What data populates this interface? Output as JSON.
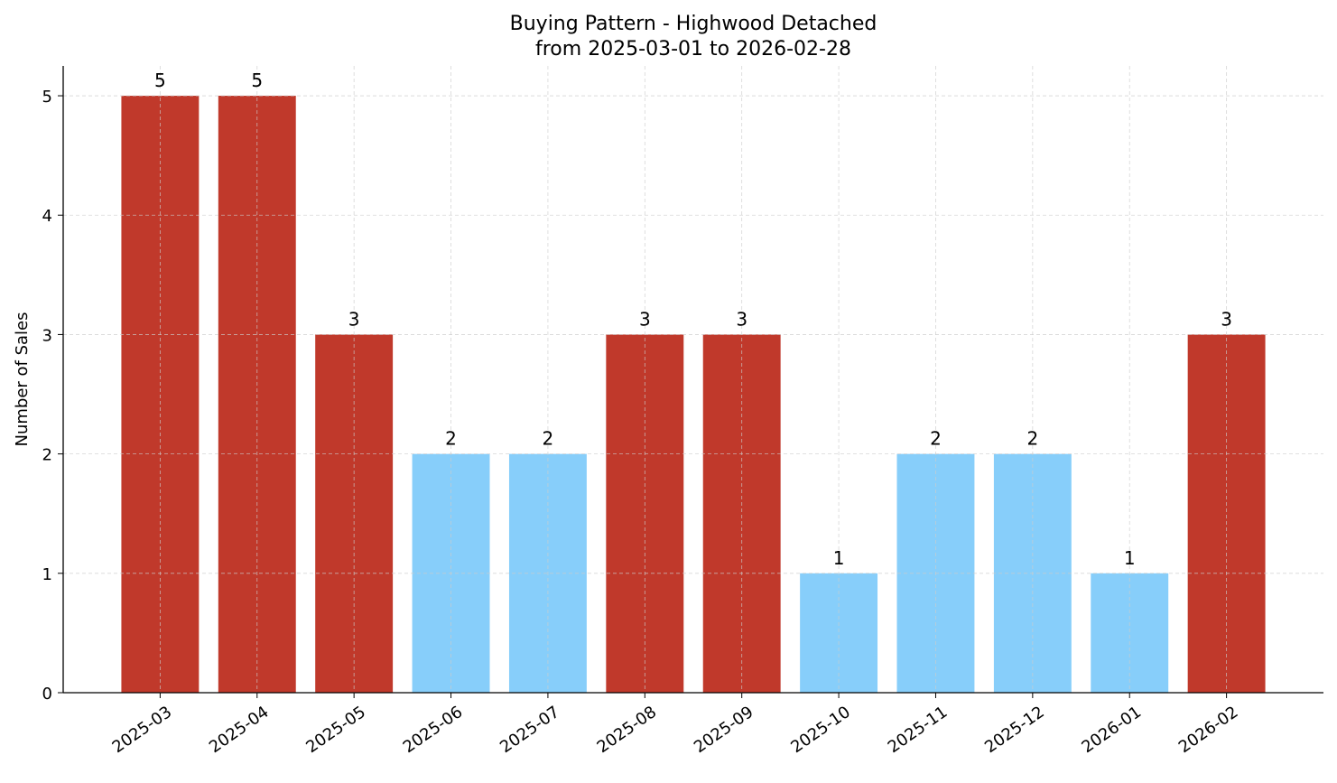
{
  "chart_data": {
    "type": "bar",
    "title": "Buying Pattern - Highwood Detached",
    "subtitle": "from 2025-03-01 to 2026-02-28",
    "xlabel": "",
    "ylabel": "Number of Sales",
    "categories": [
      "2025-03",
      "2025-04",
      "2025-05",
      "2025-06",
      "2025-07",
      "2025-08",
      "2025-09",
      "2025-10",
      "2025-11",
      "2025-12",
      "2026-01",
      "2026-02"
    ],
    "values": [
      5,
      5,
      3,
      2,
      2,
      3,
      3,
      1,
      2,
      2,
      1,
      3
    ],
    "bar_colors": [
      "#c0392b",
      "#c0392b",
      "#c0392b",
      "#87cefa",
      "#87cefa",
      "#c0392b",
      "#c0392b",
      "#87cefa",
      "#87cefa",
      "#87cefa",
      "#87cefa",
      "#c0392b"
    ],
    "yticks": [
      0,
      1,
      2,
      3,
      4,
      5
    ],
    "ylim": [
      0,
      5.25
    ],
    "grid": true,
    "data_labels": true
  }
}
